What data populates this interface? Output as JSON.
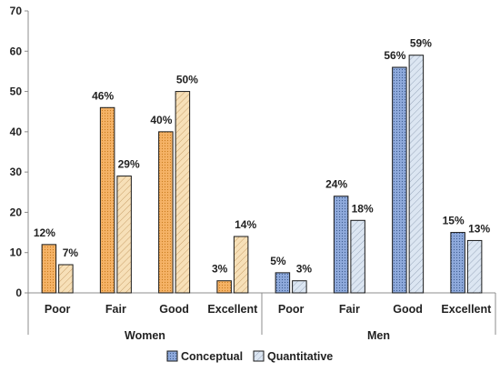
{
  "chart_data": {
    "type": "bar",
    "groups": [
      {
        "name": "Women",
        "categories": [
          "Poor",
          "Fair",
          "Good",
          "Excellent"
        ]
      },
      {
        "name": "Men",
        "categories": [
          "Poor",
          "Fair",
          "Good",
          "Excellent"
        ]
      }
    ],
    "series": [
      {
        "name": "Conceptual",
        "women_color": "#F5B266",
        "men_color": "#8EA9DB",
        "values": [
          12,
          46,
          40,
          3,
          5,
          24,
          56,
          15
        ],
        "labels": [
          "12%",
          "46%",
          "40%",
          "3%",
          "5%",
          "24%",
          "56%",
          "15%"
        ]
      },
      {
        "name": "Quantitative",
        "women_color": "#F7E0B8",
        "men_color": "#DCE6F2",
        "values": [
          7,
          29,
          50,
          14,
          3,
          18,
          59,
          13
        ],
        "labels": [
          "7%",
          "29%",
          "50%",
          "14%",
          "3%",
          "18%",
          "59%",
          "13%"
        ]
      }
    ],
    "ylim": [
      0,
      70
    ],
    "yticks": [
      "0",
      "10",
      "20",
      "30",
      "40",
      "50",
      "60",
      "70"
    ],
    "grid": false,
    "legend_position": "bottom"
  }
}
